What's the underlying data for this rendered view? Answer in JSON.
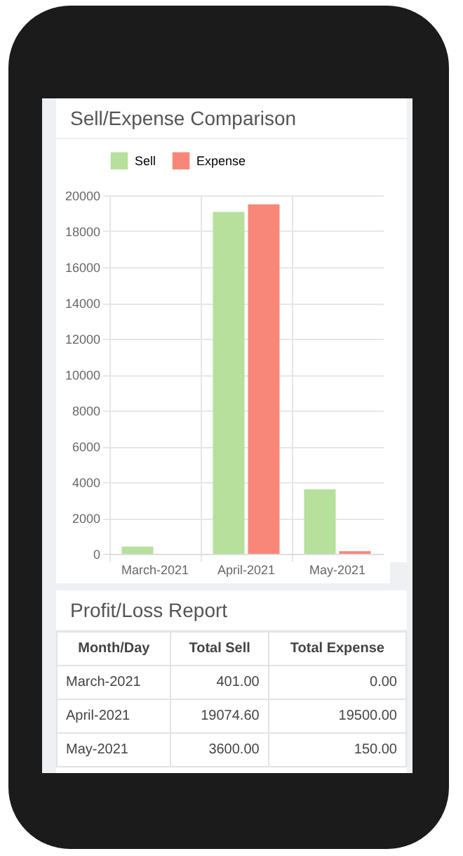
{
  "chart_data": {
    "type": "bar",
    "title": "Sell/Expense Comparison",
    "categories": [
      "March-2021",
      "April-2021",
      "May-2021"
    ],
    "series": [
      {
        "name": "Sell",
        "color": "#b6e09b",
        "values": [
          401,
          19074.6,
          3600
        ]
      },
      {
        "name": "Expense",
        "color": "#f88779",
        "values": [
          0,
          19500,
          150
        ]
      }
    ],
    "ylim": [
      0,
      20000
    ],
    "yticks": [
      0,
      2000,
      4000,
      6000,
      8000,
      10000,
      12000,
      14000,
      16000,
      18000,
      20000
    ],
    "grid": true,
    "legend": "top",
    "annotations": [
      "Profit/Loss Report",
      "Month/Day",
      "Total Sell",
      "Total Expense",
      "March-2021",
      "401.00",
      "0.00",
      "April-2021",
      "19074.60",
      "19500.00",
      "May-2021",
      "3600.00",
      "150.00"
    ]
  }
}
